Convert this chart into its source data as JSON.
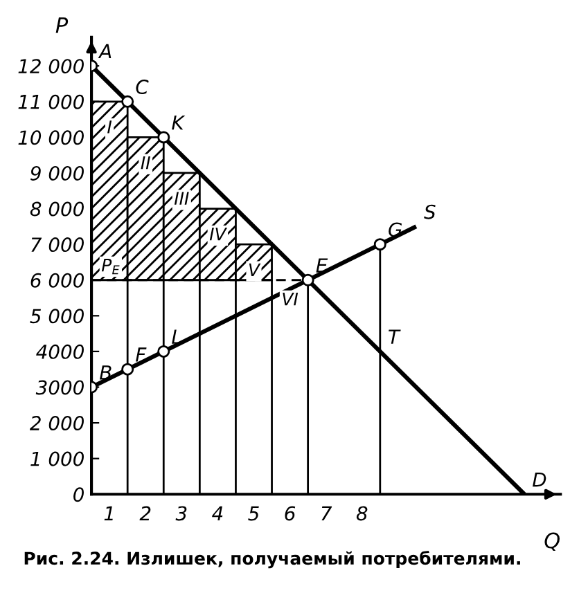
{
  "chart_data": {
    "type": "line",
    "xlabel": "Q",
    "ylabel": "P",
    "xlim": [
      0,
      13
    ],
    "ylim": [
      0,
      12800
    ],
    "xticks": [
      {
        "value": 0.5,
        "label": "1"
      },
      {
        "value": 1.5,
        "label": "2"
      },
      {
        "value": 2.5,
        "label": "3"
      },
      {
        "value": 3.5,
        "label": "4"
      },
      {
        "value": 4.5,
        "label": "5"
      },
      {
        "value": 5.5,
        "label": "6"
      },
      {
        "value": 6.5,
        "label": "7"
      },
      {
        "value": 7.5,
        "label": "8"
      }
    ],
    "yticks": [
      {
        "value": 0,
        "label": "0"
      },
      {
        "value": 1000,
        "label": "1 000"
      },
      {
        "value": 2000,
        "label": "2 000"
      },
      {
        "value": 3000,
        "label": "3000"
      },
      {
        "value": 4000,
        "label": "4000"
      },
      {
        "value": 5000,
        "label": "5 000"
      },
      {
        "value": 6000,
        "label": "6 000"
      },
      {
        "value": 7000,
        "label": "7 000"
      },
      {
        "value": 8000,
        "label": "8 000"
      },
      {
        "value": 9000,
        "label": "9 000"
      },
      {
        "value": 10000,
        "label": "10 000"
      },
      {
        "value": 11000,
        "label": "11 000"
      },
      {
        "value": 12000,
        "label": "12 000"
      }
    ],
    "grid": false,
    "legend": false,
    "series": [
      {
        "type": "bar",
        "x": [
          0.5,
          1.5,
          2.5,
          3.5,
          4.5
        ],
        "base": [
          6000,
          6000,
          6000,
          6000,
          6000
        ],
        "values": [
          5000,
          4000,
          3000,
          2000,
          1000
        ],
        "color": "#000000"
      },
      {
        "x": [
          1,
          1
        ],
        "values": [
          0,
          6000
        ],
        "color": "#000000",
        "line_style": "solid"
      },
      {
        "x": [
          2,
          2
        ],
        "values": [
          0,
          6000
        ],
        "color": "#000000",
        "line_style": "solid"
      },
      {
        "x": [
          3,
          3
        ],
        "values": [
          0,
          6000
        ],
        "color": "#000000",
        "line_style": "solid"
      },
      {
        "x": [
          4,
          4
        ],
        "values": [
          0,
          6000
        ],
        "color": "#000000",
        "line_style": "solid"
      },
      {
        "x": [
          5,
          5
        ],
        "values": [
          0,
          6000
        ],
        "color": "#000000",
        "line_style": "solid"
      },
      {
        "x": [
          6,
          6
        ],
        "values": [
          0,
          6000
        ],
        "color": "#000000",
        "line_style": "solid"
      },
      {
        "x": [
          8,
          8
        ],
        "values": [
          0,
          7000
        ],
        "color": "#000000",
        "line_style": "solid"
      },
      {
        "x": [
          0,
          6
        ],
        "values": [
          6000,
          6000
        ],
        "color": "#000000",
        "line_style": "dashed"
      },
      {
        "x": [
          0,
          12
        ],
        "values": [
          12000,
          0
        ],
        "color": "#000000",
        "line_style": "solid"
      },
      {
        "x": [
          0,
          9
        ],
        "values": [
          3000,
          7500
        ],
        "color": "#000000",
        "line_style": "solid"
      },
      {
        "type": "scatter",
        "x": [
          0,
          1,
          2,
          6,
          8,
          1,
          2,
          0
        ],
        "values": [
          12000,
          11000,
          10000,
          6000,
          7000,
          3500,
          4000,
          3000
        ],
        "color": "#000000",
        "marker": "circle"
      }
    ],
    "annotations": [
      {
        "text": "A",
        "x": 0,
        "y": 12000
      },
      {
        "text": "C",
        "x": 1,
        "y": 11000
      },
      {
        "text": "K",
        "x": 2,
        "y": 10000
      },
      {
        "text": "E",
        "x": 6,
        "y": 6000
      },
      {
        "text": "G",
        "x": 8,
        "y": 7000
      },
      {
        "text": "S",
        "x": 9,
        "y": 7500
      },
      {
        "text": "T",
        "x": 8,
        "y": 4000
      },
      {
        "text": "D",
        "x": 12,
        "y": 0
      },
      {
        "text": "F",
        "x": 1,
        "y": 3500
      },
      {
        "text": "L",
        "x": 2,
        "y": 4000
      },
      {
        "text": "B",
        "x": 0,
        "y": 3000
      },
      {
        "text": "I",
        "x": 0.5,
        "y": 11000
      },
      {
        "text": "II",
        "x": 1.5,
        "y": 10000
      },
      {
        "text": "III",
        "x": 2.5,
        "y": 9000
      },
      {
        "text": "IV",
        "x": 3.5,
        "y": 8000
      },
      {
        "text": "V",
        "x": 4.5,
        "y": 7000
      },
      {
        "text": "VI",
        "x": 5.5,
        "y": 5750
      },
      {
        "text": "P$_{E}$",
        "x": 0,
        "y": 6000
      },
      "Рис. 2.24. Излишек, получаемый потребителями."
    ]
  }
}
